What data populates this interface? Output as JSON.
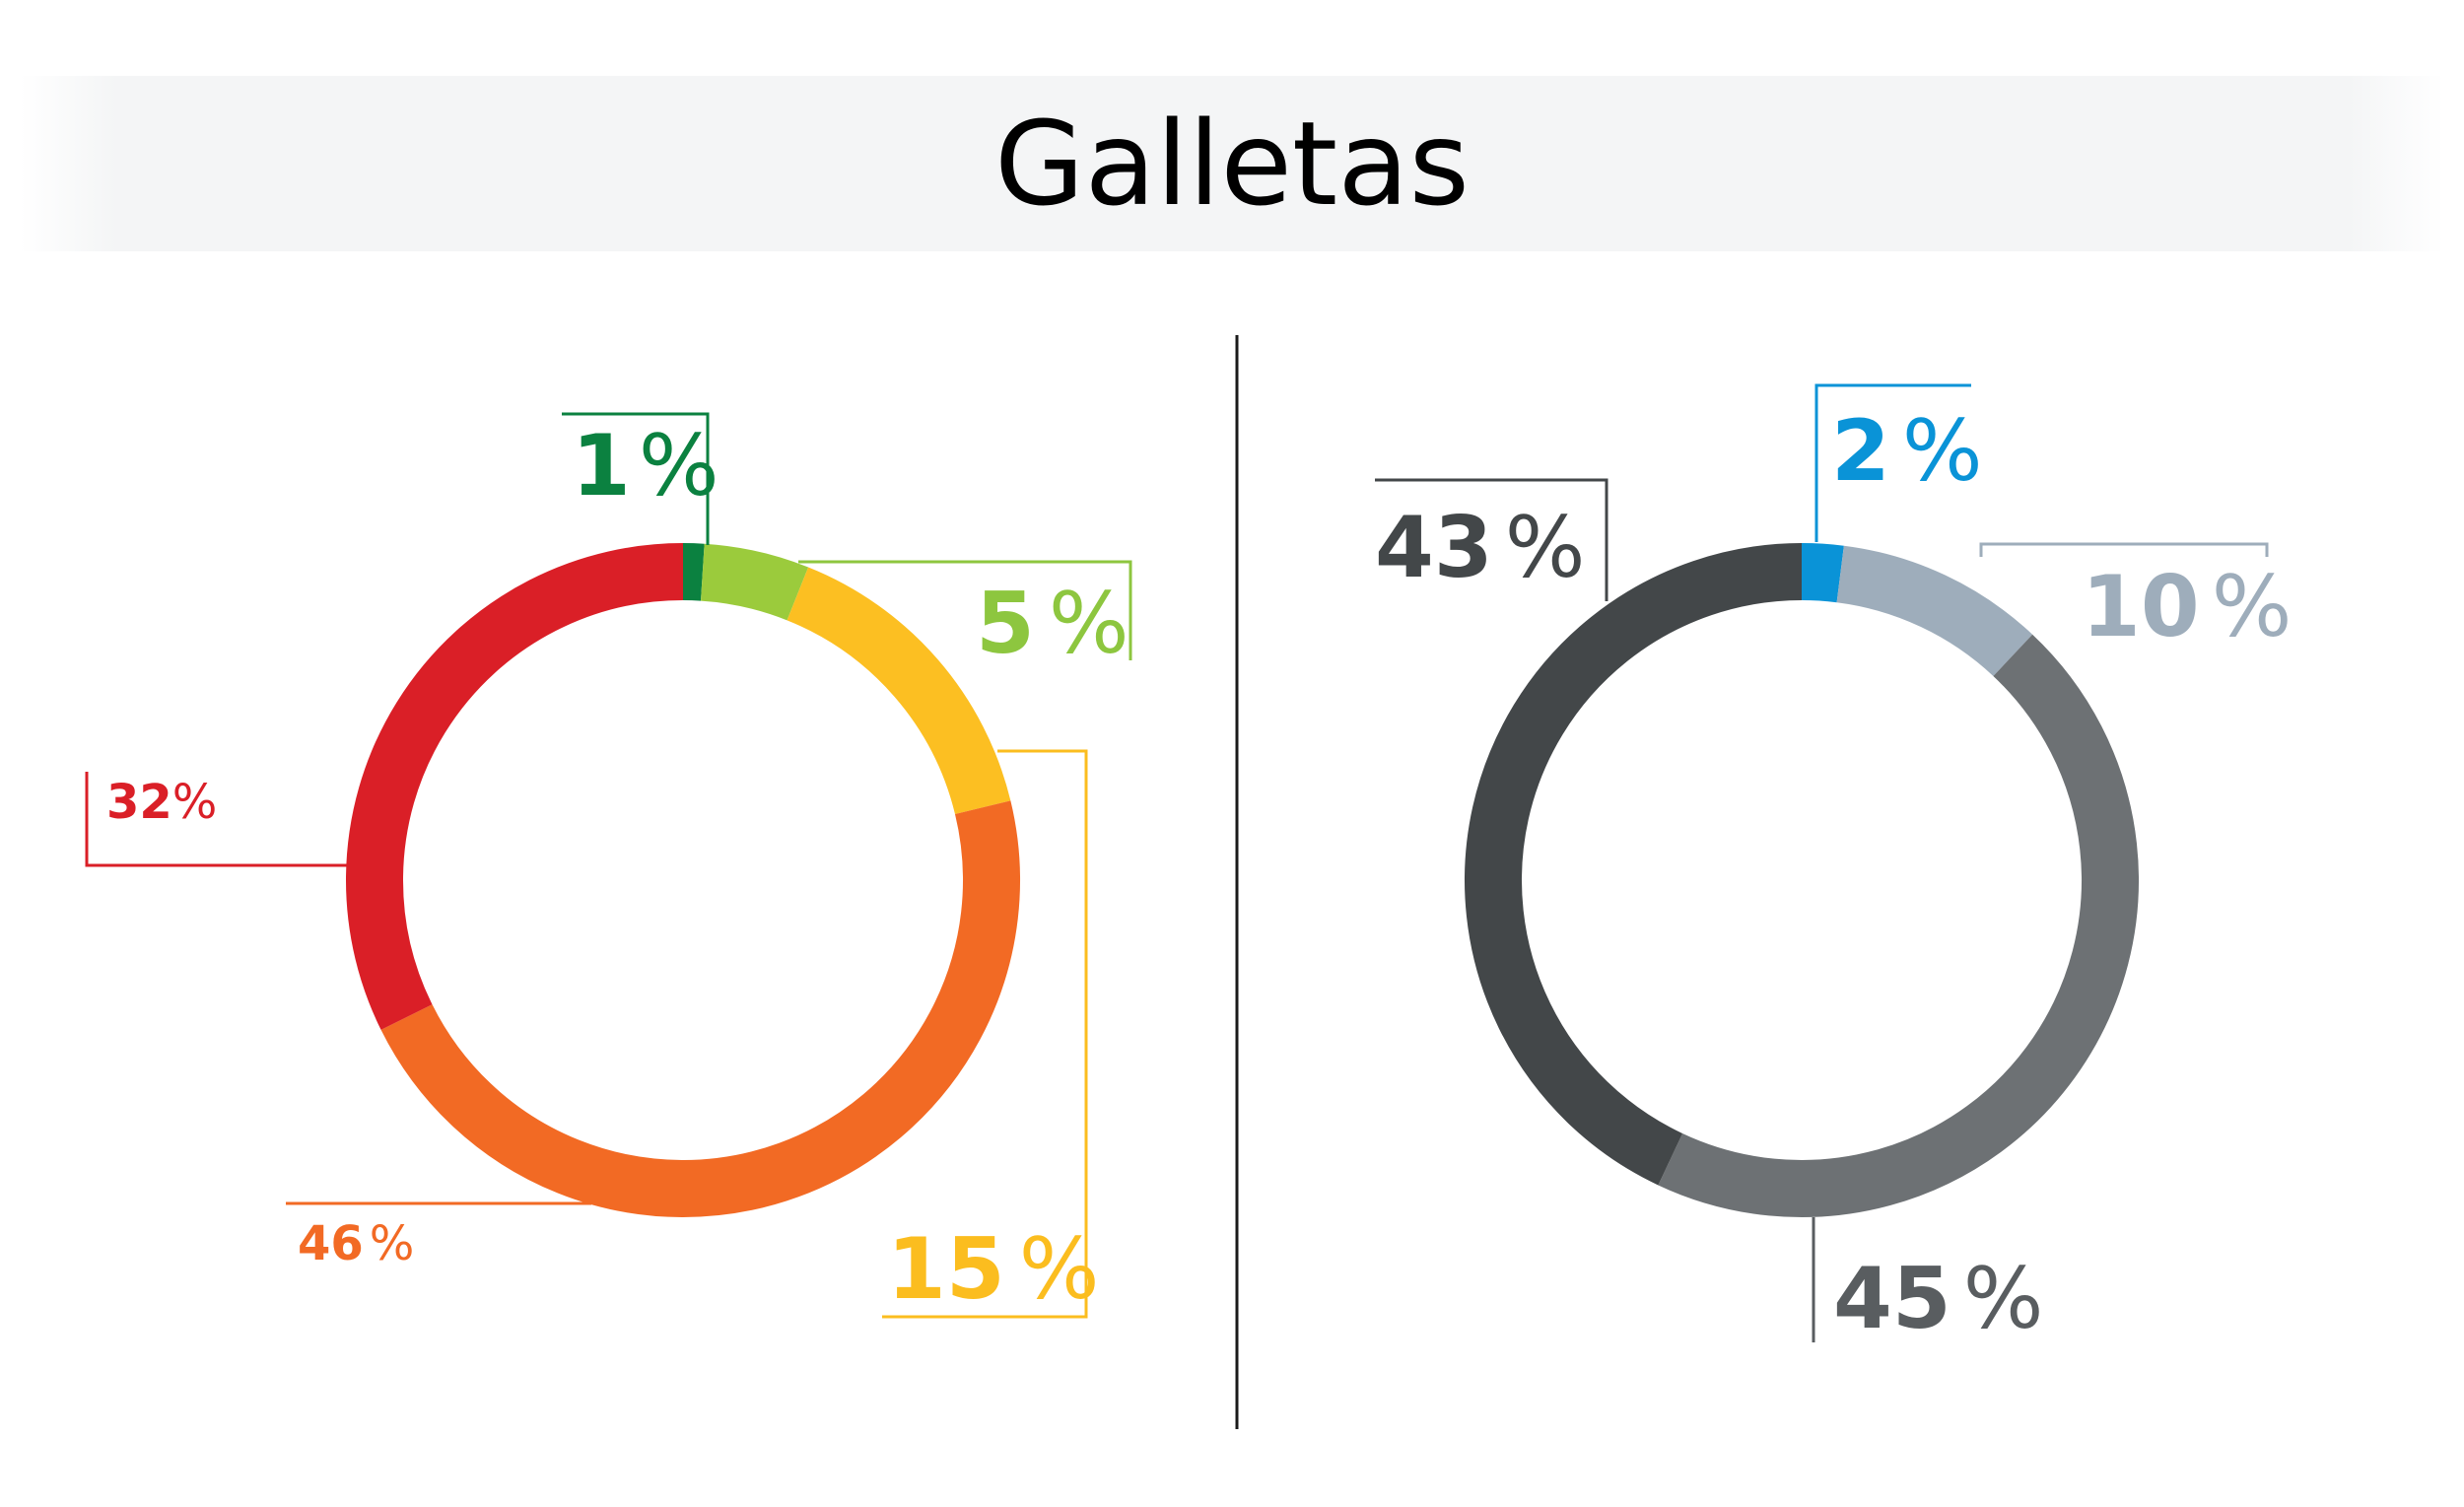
{
  "title": "Galletas",
  "chart_data": [
    {
      "type": "pie",
      "donut": true,
      "start": "top",
      "direction": "clockwise",
      "slices": [
        {
          "label": "1",
          "value": 1,
          "color": "#0b8140",
          "num_color": "#0b8140",
          "pct_color": "#0b8140"
        },
        {
          "label": "5",
          "value": 5,
          "color": "#9bcb3c",
          "num_color": "#8dc63f",
          "pct_color": "#8dc63f"
        },
        {
          "label": "15",
          "value": 15,
          "color": "#fcbf22",
          "num_color": "#fbbd1f",
          "pct_color": "#fbbd1f"
        },
        {
          "label": "46",
          "value": 46,
          "color": "#f26a24",
          "num_color": "#f26a24",
          "pct_color": "#f26a24"
        },
        {
          "label": "32",
          "value": 32,
          "color": "#da1f27",
          "num_color": "#da1f27",
          "pct_color": "#da1f27"
        }
      ]
    },
    {
      "type": "pie",
      "donut": true,
      "start": "top",
      "direction": "clockwise",
      "slices": [
        {
          "label": "2",
          "value": 2,
          "color": "#0a93d7",
          "num_color": "#0a93d7",
          "pct_color": "#0a93d7"
        },
        {
          "label": "10",
          "value": 10,
          "color": "#9eadbb",
          "num_color": "#9eadbb",
          "pct_color": "#9eadbb"
        },
        {
          "label": "45",
          "value": 45,
          "color": "#6d7174",
          "num_color": "#595d60",
          "pct_color": "#595d60"
        },
        {
          "label": "43",
          "value": 43,
          "color": "#434749",
          "num_color": "#434749",
          "pct_color": "#434749"
        }
      ]
    }
  ],
  "percent_symbol": "%"
}
